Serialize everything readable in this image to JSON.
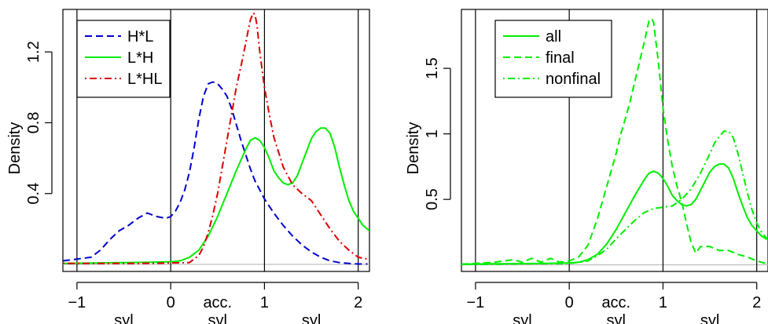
{
  "chart_data": [
    {
      "type": "line",
      "title": "",
      "xlabel": "",
      "ylabel": "Density",
      "xlim": [
        -1.15,
        2.12
      ],
      "ylim": [
        -0.04,
        1.44
      ],
      "grid": false,
      "legend_position": "top-left",
      "x_ticks": [
        {
          "value": -1,
          "label": "−1"
        },
        {
          "value": 0,
          "label": "0"
        },
        {
          "value": 1,
          "label": "1"
        },
        {
          "value": 2,
          "label": "2"
        }
      ],
      "y_ticks": [
        {
          "value": 0.4,
          "label": "0.4"
        },
        {
          "value": 0.8,
          "label": "0.8"
        },
        {
          "value": 1.2,
          "label": "1.2"
        }
      ],
      "extra_x_labels": [
        {
          "value": 0.5,
          "row": 1,
          "label": "acc."
        },
        {
          "value": -0.5,
          "row": 2,
          "label": "syl"
        },
        {
          "value": 0.5,
          "row": 2,
          "label": "syl"
        },
        {
          "value": 1.5,
          "row": 2,
          "label": "syl"
        }
      ],
      "vlines": [
        -1,
        0,
        1,
        2
      ],
      "baseline_y": 0,
      "series": [
        {
          "name": "H*L",
          "color": "#0000cc",
          "dash": "dashed",
          "x": [
            -1.15,
            -1.0,
            -0.85,
            -0.75,
            -0.65,
            -0.55,
            -0.45,
            -0.35,
            -0.25,
            -0.15,
            -0.05,
            0.0,
            0.05,
            0.1,
            0.15,
            0.2,
            0.25,
            0.3,
            0.35,
            0.4,
            0.45,
            0.5,
            0.55,
            0.6,
            0.65,
            0.7,
            0.75,
            0.8,
            0.85,
            0.9,
            0.95,
            1.0,
            1.1,
            1.2,
            1.3,
            1.4,
            1.5,
            1.6,
            1.7,
            1.8,
            1.9,
            2.0,
            2.1
          ],
          "y": [
            0.02,
            0.03,
            0.04,
            0.08,
            0.14,
            0.19,
            0.22,
            0.26,
            0.29,
            0.27,
            0.26,
            0.27,
            0.3,
            0.35,
            0.42,
            0.52,
            0.66,
            0.82,
            0.95,
            1.02,
            1.03,
            1.02,
            0.99,
            0.95,
            0.88,
            0.79,
            0.7,
            0.62,
            0.54,
            0.47,
            0.42,
            0.37,
            0.29,
            0.22,
            0.16,
            0.11,
            0.07,
            0.04,
            0.02,
            0.01,
            0.005,
            0.002,
            0.002
          ]
        },
        {
          "name": "L*H",
          "color": "#00ee00",
          "dash": "solid",
          "x": [
            -1.15,
            -0.8,
            -0.5,
            -0.2,
            0.0,
            0.1,
            0.2,
            0.3,
            0.4,
            0.5,
            0.6,
            0.7,
            0.8,
            0.85,
            0.9,
            0.95,
            1.0,
            1.05,
            1.1,
            1.15,
            1.2,
            1.25,
            1.3,
            1.35,
            1.4,
            1.45,
            1.5,
            1.55,
            1.6,
            1.65,
            1.7,
            1.75,
            1.8,
            1.85,
            1.9,
            1.95,
            2.0,
            2.05,
            2.12
          ],
          "y": [
            0.005,
            0.008,
            0.01,
            0.012,
            0.015,
            0.02,
            0.04,
            0.08,
            0.16,
            0.27,
            0.4,
            0.53,
            0.65,
            0.7,
            0.715,
            0.7,
            0.66,
            0.6,
            0.53,
            0.49,
            0.46,
            0.45,
            0.46,
            0.5,
            0.57,
            0.64,
            0.71,
            0.75,
            0.77,
            0.77,
            0.74,
            0.66,
            0.55,
            0.45,
            0.36,
            0.3,
            0.26,
            0.22,
            0.19
          ]
        },
        {
          "name": "L*HL",
          "color": "#dd0000",
          "dash": "dotdash",
          "x": [
            -1.15,
            -0.8,
            -0.5,
            -0.2,
            0.0,
            0.2,
            0.3,
            0.35,
            0.4,
            0.45,
            0.5,
            0.55,
            0.6,
            0.65,
            0.7,
            0.75,
            0.8,
            0.83,
            0.85,
            0.88,
            0.9,
            0.92,
            0.95,
            1.0,
            1.05,
            1.1,
            1.2,
            1.3,
            1.4,
            1.5,
            1.6,
            1.7,
            1.8,
            1.9,
            2.0,
            2.1
          ],
          "y": [
            0.005,
            0.005,
            0.005,
            0.006,
            0.008,
            0.01,
            0.05,
            0.1,
            0.18,
            0.28,
            0.4,
            0.55,
            0.7,
            0.85,
            1.0,
            1.12,
            1.25,
            1.33,
            1.38,
            1.42,
            1.41,
            1.35,
            1.2,
            1.0,
            0.85,
            0.72,
            0.55,
            0.45,
            0.4,
            0.36,
            0.28,
            0.2,
            0.13,
            0.08,
            0.04,
            0.03
          ]
        }
      ]
    },
    {
      "type": "line",
      "title": "",
      "xlabel": "",
      "ylabel": "Density",
      "xlim": [
        -1.15,
        2.12
      ],
      "ylim": [
        -0.05,
        1.95
      ],
      "grid": false,
      "legend_position": "top-left",
      "x_ticks": [
        {
          "value": -1,
          "label": "−1"
        },
        {
          "value": 0,
          "label": "0"
        },
        {
          "value": 1,
          "label": "1"
        },
        {
          "value": 2,
          "label": "2"
        }
      ],
      "y_ticks": [
        {
          "value": 0.5,
          "label": "0.5"
        },
        {
          "value": 1.0,
          "label": "1"
        },
        {
          "value": 1.5,
          "label": "1.5"
        }
      ],
      "extra_x_labels": [
        {
          "value": 0.5,
          "row": 1,
          "label": "acc."
        },
        {
          "value": -0.5,
          "row": 2,
          "label": "syl"
        },
        {
          "value": 0.5,
          "row": 2,
          "label": "syl"
        },
        {
          "value": 1.5,
          "row": 2,
          "label": "syl"
        }
      ],
      "vlines": [
        -1,
        0,
        1,
        2
      ],
      "baseline_y": 0,
      "series": [
        {
          "name": "all",
          "color": "#00ee00",
          "dash": "solid",
          "x": [
            -1.15,
            -0.8,
            -0.5,
            -0.2,
            0.0,
            0.1,
            0.2,
            0.3,
            0.4,
            0.5,
            0.6,
            0.7,
            0.8,
            0.85,
            0.9,
            0.95,
            1.0,
            1.05,
            1.1,
            1.15,
            1.2,
            1.25,
            1.3,
            1.35,
            1.4,
            1.45,
            1.5,
            1.55,
            1.6,
            1.65,
            1.7,
            1.75,
            1.8,
            1.85,
            1.9,
            1.95,
            2.0,
            2.05,
            2.12
          ],
          "y": [
            0.005,
            0.008,
            0.01,
            0.012,
            0.015,
            0.02,
            0.04,
            0.08,
            0.16,
            0.27,
            0.4,
            0.53,
            0.65,
            0.7,
            0.715,
            0.7,
            0.66,
            0.6,
            0.53,
            0.49,
            0.46,
            0.45,
            0.46,
            0.5,
            0.57,
            0.64,
            0.71,
            0.75,
            0.77,
            0.77,
            0.74,
            0.66,
            0.55,
            0.45,
            0.36,
            0.3,
            0.26,
            0.22,
            0.19
          ]
        },
        {
          "name": "final",
          "color": "#00ee00",
          "dash": "dashed",
          "x": [
            -1.15,
            -0.8,
            -0.6,
            -0.5,
            -0.4,
            -0.3,
            -0.2,
            -0.1,
            0.0,
            0.1,
            0.2,
            0.3,
            0.4,
            0.5,
            0.55,
            0.6,
            0.65,
            0.7,
            0.75,
            0.8,
            0.85,
            0.88,
            0.9,
            0.95,
            1.0,
            1.05,
            1.1,
            1.15,
            1.2,
            1.25,
            1.3,
            1.35,
            1.4,
            1.5,
            1.6,
            1.7,
            1.8,
            1.9,
            2.0,
            2.1
          ],
          "y": [
            0.005,
            0.02,
            0.04,
            0.02,
            0.05,
            0.02,
            0.05,
            0.02,
            0.03,
            0.06,
            0.15,
            0.35,
            0.6,
            0.85,
            1.0,
            1.12,
            1.25,
            1.4,
            1.55,
            1.7,
            1.86,
            1.88,
            1.85,
            1.55,
            1.2,
            0.95,
            0.75,
            0.6,
            0.48,
            0.32,
            0.17,
            0.09,
            0.14,
            0.14,
            0.11,
            0.11,
            0.08,
            0.06,
            0.03,
            0.01
          ]
        },
        {
          "name": "nonfinal",
          "color": "#00ee00",
          "dash": "dotdash",
          "x": [
            -1.15,
            -0.8,
            -0.5,
            -0.2,
            0.0,
            0.2,
            0.3,
            0.4,
            0.5,
            0.6,
            0.7,
            0.8,
            0.9,
            1.0,
            1.1,
            1.2,
            1.3,
            1.4,
            1.5,
            1.55,
            1.6,
            1.65,
            1.7,
            1.75,
            1.8,
            1.85,
            1.9,
            1.95,
            2.0,
            2.05,
            2.12
          ],
          "y": [
            0.003,
            0.005,
            0.008,
            0.01,
            0.01,
            0.03,
            0.07,
            0.12,
            0.2,
            0.27,
            0.34,
            0.4,
            0.43,
            0.44,
            0.45,
            0.5,
            0.58,
            0.7,
            0.85,
            0.93,
            0.98,
            1.02,
            1.02,
            0.97,
            0.85,
            0.7,
            0.55,
            0.42,
            0.32,
            0.25,
            0.19
          ]
        }
      ]
    }
  ]
}
